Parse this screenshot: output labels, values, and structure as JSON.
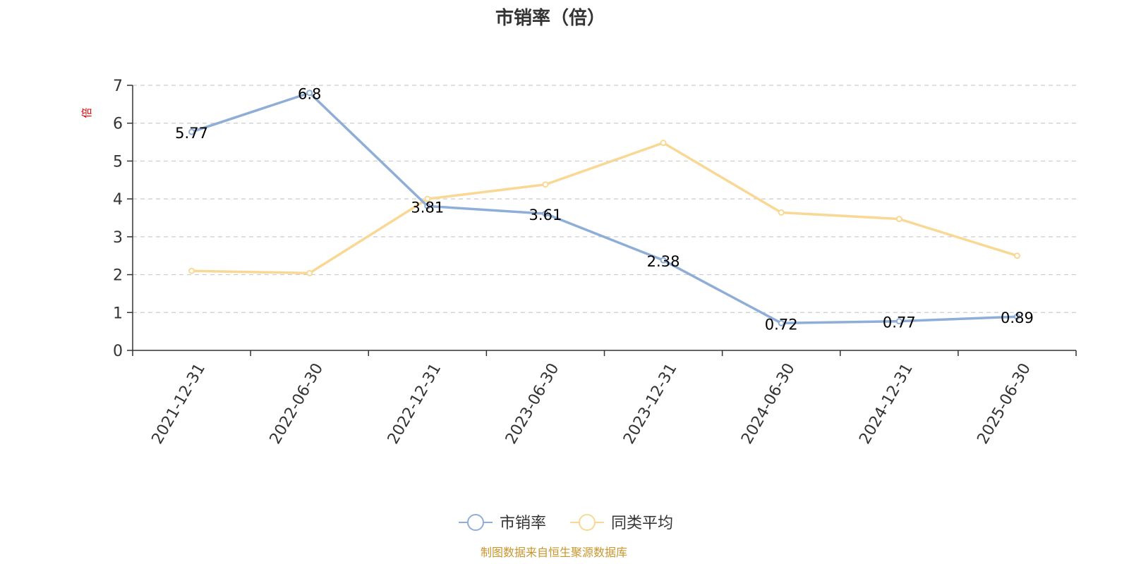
{
  "chart_data": {
    "type": "line",
    "title": "市销率（倍）",
    "ylabel": "倍",
    "xlabel": "",
    "categories": [
      "2021-12-31",
      "2022-06-30",
      "2022-12-31",
      "2023-06-30",
      "2023-12-31",
      "2024-06-30",
      "2024-12-31",
      "2025-06-30"
    ],
    "ylim": [
      0,
      7
    ],
    "yticks": [
      0,
      1,
      2,
      3,
      4,
      5,
      6,
      7
    ],
    "grid": true,
    "legend_position": "bottom",
    "series": [
      {
        "name": "市销率",
        "color": "#8eaed8",
        "values": [
          5.77,
          6.8,
          3.81,
          3.61,
          2.38,
          0.72,
          0.77,
          0.89
        ],
        "labels": [
          "5.77",
          "6.8",
          "3.81",
          "3.61",
          "2.38",
          "0.72",
          "0.77",
          "0.89"
        ]
      },
      {
        "name": "同类平均",
        "color": "#f9d895",
        "values": [
          2.1,
          2.04,
          4.0,
          4.38,
          5.48,
          3.64,
          3.47,
          2.5
        ]
      }
    ]
  },
  "footer": {
    "credit": "制图数据来自恒生聚源数据库"
  }
}
